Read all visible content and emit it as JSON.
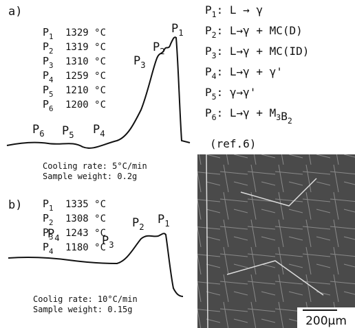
{
  "panel_a": {
    "label": "a)",
    "peaks": [
      {
        "name": "P",
        "sub": "1",
        "temp": "1329 °C"
      },
      {
        "name": "P",
        "sub": "2",
        "temp": "1319 °C"
      },
      {
        "name": "P",
        "sub": "3",
        "temp": "1310 °C"
      },
      {
        "name": "P",
        "sub": "4",
        "temp": "1259 °C"
      },
      {
        "name": "P",
        "sub": "5",
        "temp": "1210 °C"
      },
      {
        "name": "P",
        "sub": "6",
        "temp": "1200 °C"
      }
    ],
    "curve_labels": [
      {
        "name": "P",
        "sub": "1"
      },
      {
        "name": "P",
        "sub": "2"
      },
      {
        "name": "P",
        "sub": "3"
      },
      {
        "name": "P",
        "sub": "4"
      },
      {
        "name": "P",
        "sub": "5"
      },
      {
        "name": "P",
        "sub": "6"
      }
    ],
    "conditions": [
      "Cooling rate: 5°C/min",
      "Sample weight: 0.2g"
    ]
  },
  "panel_b": {
    "label": "b)",
    "peaks": [
      {
        "name": "P",
        "sub": "1",
        "temp": "1335 °C"
      },
      {
        "name": "P",
        "sub": "2",
        "temp": "1308 °C"
      },
      {
        "name": "P",
        "sub": "3",
        "temp": "1243 °C"
      },
      {
        "name": "P",
        "sub": "4",
        "temp": "1180 °C"
      }
    ],
    "curve_labels": [
      {
        "name": "P",
        "sub": "1"
      },
      {
        "name": "P",
        "sub": "2"
      },
      {
        "name": "P",
        "sub": "3"
      },
      {
        "name": "P",
        "sub": "4"
      }
    ],
    "conditions": [
      "Coolig rate: 10°C/min",
      "Sample weight: 0.15g"
    ]
  },
  "reactions": [
    {
      "name": "P",
      "sub": "1",
      "text": [
        ": L → γ"
      ]
    },
    {
      "name": "P",
      "sub": "2",
      "text": [
        ": L→γ +  MC(D)"
      ]
    },
    {
      "name": "P",
      "sub": "3",
      "text": [
        ": L→γ + MC(ID)"
      ]
    },
    {
      "name": "P",
      "sub": "4",
      "text": [
        ": L→γ + γ'"
      ]
    },
    {
      "name": "P",
      "sub": "5",
      "text": [
        ": γ→γ'"
      ]
    },
    {
      "name": "P",
      "sub": "6",
      "text": [
        ": L→γ + M",
        "3",
        "B",
        "2"
      ]
    }
  ],
  "reference": "(ref.6)",
  "micrograph": {
    "scale_bar": "200μm"
  }
}
